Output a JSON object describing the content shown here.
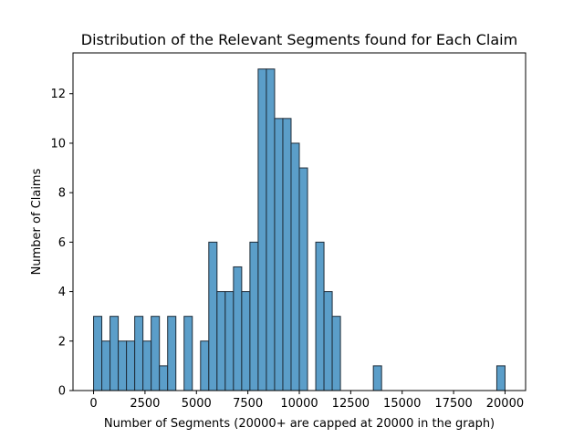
{
  "chart_data": {
    "type": "bar",
    "title": "Distribution of the Relevant Segments found for Each Claim",
    "xlabel": "Number of Segments (20000+ are capped at 20000 in the graph)",
    "ylabel": "Number of Claims",
    "xlim": [
      -1000,
      21000
    ],
    "ylim": [
      0,
      13.65
    ],
    "bin_range": [
      0,
      20000
    ],
    "bin_count": 50,
    "counts": [
      3,
      2,
      3,
      2,
      2,
      3,
      2,
      3,
      1,
      3,
      0,
      3,
      0,
      2,
      6,
      4,
      4,
      5,
      4,
      6,
      13,
      13,
      11,
      11,
      10,
      9,
      0,
      6,
      4,
      3,
      0,
      0,
      0,
      0,
      1,
      0,
      0,
      0,
      0,
      0,
      0,
      0,
      0,
      0,
      0,
      0,
      0,
      0,
      0,
      1
    ],
    "xticks": [
      0,
      2500,
      5000,
      7500,
      10000,
      12500,
      15000,
      17500,
      20000
    ],
    "yticks": [
      0,
      2,
      4,
      6,
      8,
      10,
      12
    ],
    "grid": false,
    "colors": {
      "bar_fill": "#5b9ec9",
      "bar_edge": "#1f2d3a"
    }
  }
}
